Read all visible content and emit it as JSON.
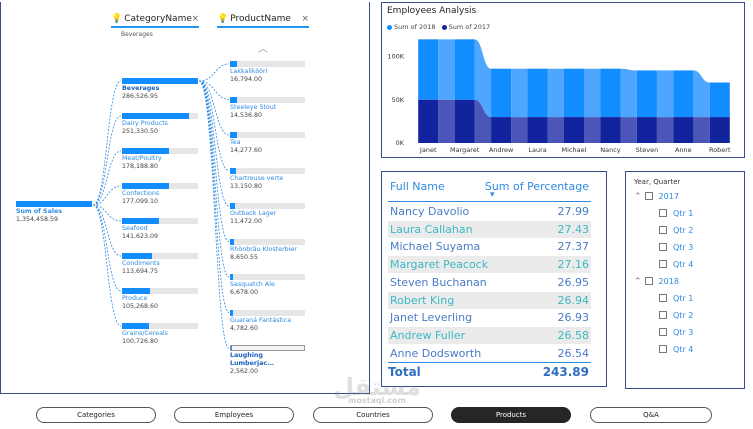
{
  "decomp": {
    "root": {
      "label": "Sum of Sales",
      "value": "1,354,458.59"
    },
    "category_header": {
      "label": "CategoryName",
      "close": "×",
      "subtitle": "Beverages"
    },
    "product_header": {
      "label": "ProductName",
      "close": "×"
    },
    "chevron_up": "︿",
    "categories": [
      {
        "label": "Beverages",
        "value": "286,526.95",
        "pct": 1.0
      },
      {
        "label": "Dairy Products",
        "value": "251,330.50",
        "pct": 0.88
      },
      {
        "label": "Meat/Poultry",
        "value": "178,188.80",
        "pct": 0.62
      },
      {
        "label": "Confections",
        "value": "177,099.10",
        "pct": 0.62
      },
      {
        "label": "Seafood",
        "value": "141,623.09",
        "pct": 0.49
      },
      {
        "label": "Condiments",
        "value": "113,694.75",
        "pct": 0.4
      },
      {
        "label": "Produce",
        "value": "105,268.60",
        "pct": 0.37
      },
      {
        "label": "Grains/Cereals",
        "value": "100,726.80",
        "pct": 0.35
      }
    ],
    "products": [
      {
        "label": "Lakkalikööri",
        "value": "16,794.00",
        "pct": 0.11
      },
      {
        "label": "Steeleye Stout",
        "value": "14,536.80",
        "pct": 0.1
      },
      {
        "label": "Tea",
        "value": "14,277.60",
        "pct": 0.1
      },
      {
        "label": "Chartreuse verte",
        "value": "13,150.80",
        "pct": 0.09
      },
      {
        "label": "Outback Lager",
        "value": "11,472.00",
        "pct": 0.08
      },
      {
        "label": "Rhönbräu Klosterbier",
        "value": "8,650.55",
        "pct": 0.06
      },
      {
        "label": "Sasquatch Ale",
        "value": "6,678.00",
        "pct": 0.05
      },
      {
        "label": "Guaraná Fantástica",
        "value": "4,782.60",
        "pct": 0.04
      },
      {
        "label": "Laughing Lumberjac...",
        "value": "2,562.00",
        "pct": 0.02
      }
    ]
  },
  "employees_chart": {
    "title": "Employees Analysis",
    "legend": [
      {
        "name": "Sum of 2018",
        "color": "#118dff"
      },
      {
        "name": "Sum of 2017",
        "color": "#12239e"
      }
    ],
    "y_ticks": [
      "100K",
      "50K",
      "0K"
    ]
  },
  "chart_data": {
    "type": "bar",
    "title": "Employees Analysis",
    "stacked": true,
    "categories": [
      "Janet",
      "Margaret",
      "Andrew",
      "Laura",
      "Michael",
      "Nancy",
      "Steven",
      "Anne",
      "Robert"
    ],
    "series": [
      {
        "name": "Sum of 2017",
        "values": [
          50000,
          50000,
          30000,
          30000,
          30000,
          30000,
          30000,
          30000,
          30000
        ]
      },
      {
        "name": "Sum of 2018",
        "values": [
          70000,
          70000,
          56000,
          56000,
          56000,
          56000,
          54000,
          54000,
          40000
        ]
      }
    ],
    "ylim": [
      0,
      125000
    ],
    "y_ticks": [
      0,
      50000,
      100000
    ],
    "xlabel": "",
    "ylabel": ""
  },
  "table": {
    "col_name": "Full Name",
    "col_value": "Sum of Percentage",
    "sort_icon": "▾",
    "rows": [
      {
        "name": "Nancy Davolio",
        "pct": "27.99"
      },
      {
        "name": "Laura Callahan",
        "pct": "27.43"
      },
      {
        "name": "Michael Suyama",
        "pct": "27.37"
      },
      {
        "name": "Margaret Peacock",
        "pct": "27.16"
      },
      {
        "name": "Steven Buchanan",
        "pct": "26.95"
      },
      {
        "name": "Robert King",
        "pct": "26.94"
      },
      {
        "name": "Janet Leverling",
        "pct": "26.93"
      },
      {
        "name": "Andrew Fuller",
        "pct": "26.58"
      },
      {
        "name": "Anne Dodsworth",
        "pct": "26.54"
      }
    ],
    "total_label": "Total",
    "total_value": "243.89"
  },
  "slicer": {
    "title": "Year, Quarter",
    "groups": [
      {
        "year": "2017",
        "quarters": [
          "Qtr 1",
          "Qtr 2",
          "Qtr 3",
          "Qtr 4"
        ]
      },
      {
        "year": "2018",
        "quarters": [
          "Qtr 1",
          "Qtr 2",
          "Qtr 3",
          "Qtr 4"
        ]
      }
    ]
  },
  "tabs": [
    {
      "label": "Categories",
      "active": false
    },
    {
      "label": "Employees",
      "active": false
    },
    {
      "label": "Countries",
      "active": false
    },
    {
      "label": "Products",
      "active": true
    },
    {
      "label": "Q&A",
      "active": false
    }
  ],
  "watermark": {
    "text": "مستقل",
    "sub": "mostaql.com"
  }
}
